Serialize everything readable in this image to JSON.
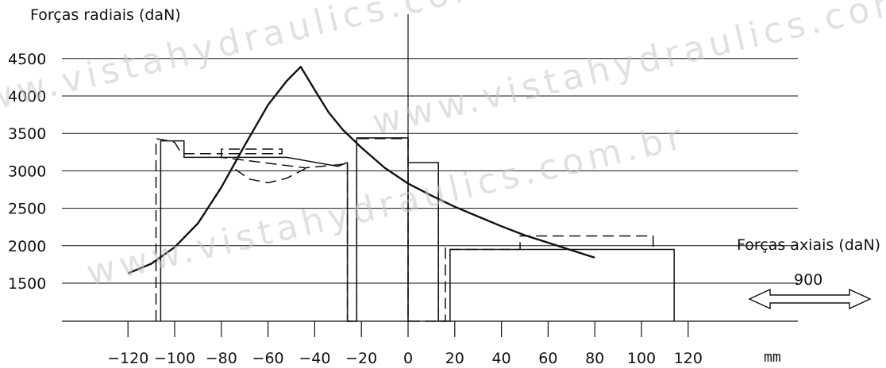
{
  "watermark": "www.vistahydraulics.com.br",
  "labels": {
    "y_axis": "Forças radiais (daN)",
    "x_side": "Forças axiais (daN)",
    "arrow_value": "900",
    "x_unit": "mm"
  },
  "colors": {
    "ink": "#111111",
    "watermark": "#c8c8c8"
  },
  "chart_data": {
    "type": "line",
    "title": "",
    "xlabel": "mm",
    "ylabel": "Forças radiais (daN)",
    "xlim": [
      -150,
      145
    ],
    "ylim": [
      1000,
      4500
    ],
    "x_ticks": [
      -120,
      -100,
      -80,
      -60,
      -40,
      -20,
      0,
      20,
      40,
      60,
      80,
      100,
      120
    ],
    "y_ticks": [
      1500,
      2000,
      2500,
      3000,
      3500,
      4000,
      4500
    ],
    "grid": "horizontal",
    "series": [
      {
        "style": "solid-curve",
        "x": [
          -120,
          -110,
          -100,
          -90,
          -80,
          -70,
          -60,
          -52,
          -46,
          -40,
          -34,
          -28,
          -20,
          -10,
          0,
          10,
          20,
          30,
          40,
          50,
          60,
          70,
          80
        ],
        "y": [
          1630,
          1760,
          1980,
          2300,
          2780,
          3340,
          3880,
          4200,
          4390,
          4080,
          3780,
          3550,
          3310,
          3040,
          2830,
          2670,
          2520,
          2390,
          2260,
          2140,
          2040,
          1940,
          1840
        ]
      },
      {
        "style": "dashed-envelope",
        "x": [
          -108,
          -108,
          -104,
          -100,
          -97,
          -80,
          -80,
          -54,
          -54,
          -80,
          -80,
          -44,
          -30,
          -26,
          -26,
          -22,
          -22,
          -22,
          0,
          0,
          0,
          13,
          13,
          13,
          16,
          16,
          16,
          48,
          48,
          105,
          105,
          105
        ],
        "y": [
          1000,
          3430,
          3410,
          3380,
          3230,
          3230,
          3290,
          3290,
          3230,
          3230,
          3180,
          3040,
          3080,
          3100,
          1000,
          1000,
          3430,
          3430,
          3430,
          3430,
          1000,
          1000,
          3110,
          1000,
          1000,
          1970,
          1950,
          1950,
          2130,
          2130,
          1950,
          1950
        ]
      },
      {
        "style": "solid-envelope",
        "x": [
          -106,
          -106,
          -96,
          -96,
          -52,
          -30,
          -26,
          -26,
          -22,
          -22,
          0,
          0,
          0,
          13,
          13,
          18,
          18,
          114,
          114
        ],
        "y": [
          1000,
          3400,
          3400,
          3180,
          3180,
          3060,
          3110,
          1000,
          1000,
          3440,
          3440,
          1000,
          3110,
          3110,
          1000,
          1000,
          1950,
          1950,
          1000
        ]
      },
      {
        "style": "dashed-dip",
        "x": [
          -74,
          -68,
          -60,
          -52,
          -44
        ],
        "y": [
          3020,
          2890,
          2840,
          2900,
          3030
        ]
      }
    ],
    "annotations": [
      {
        "text": "Forças axiais (daN)"
      },
      {
        "text": "900",
        "arrow": "double-headed"
      }
    ]
  }
}
